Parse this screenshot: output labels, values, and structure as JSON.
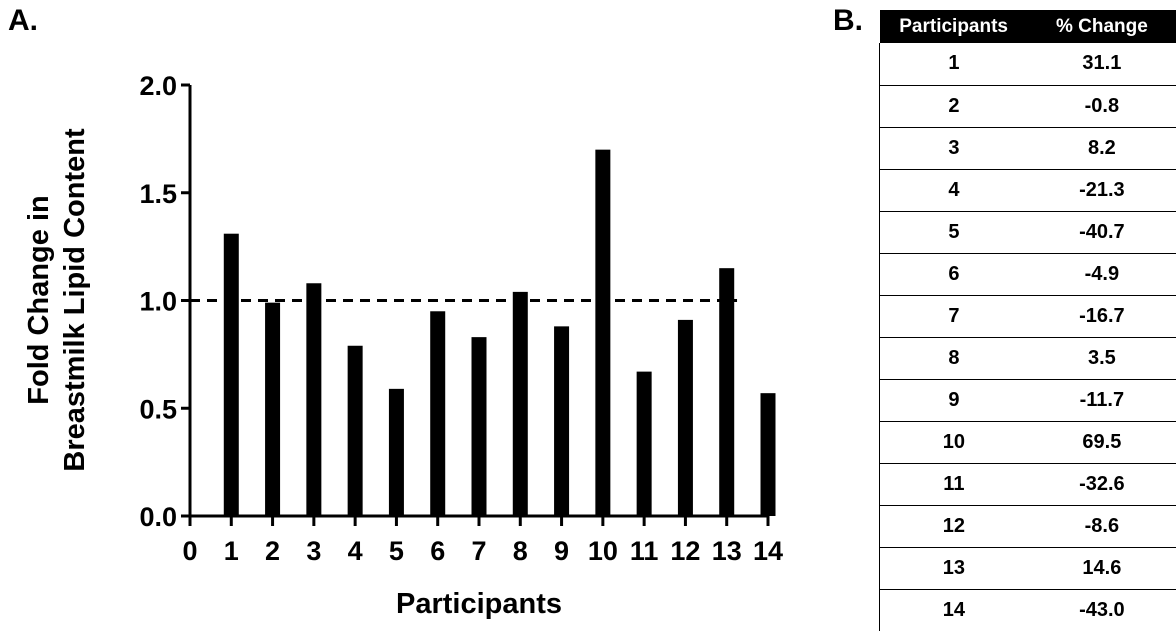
{
  "panel_a_label": "A.",
  "panel_b_label": "B.",
  "chart_data": {
    "type": "bar",
    "x": [
      1,
      2,
      3,
      4,
      5,
      6,
      7,
      8,
      9,
      10,
      11,
      12,
      13,
      14
    ],
    "values": [
      1.31,
      0.99,
      1.08,
      0.79,
      0.59,
      0.95,
      0.83,
      1.04,
      0.88,
      1.7,
      0.67,
      0.91,
      1.15,
      0.57
    ],
    "xlabel": "Participants",
    "ylabel_line1": "Fold Change in",
    "ylabel_line2": "Breastmilk Lipid Content",
    "xlim": [
      0,
      14
    ],
    "ylim": [
      0,
      2.0
    ],
    "x_ticks": [
      "0",
      "1",
      "2",
      "3",
      "4",
      "5",
      "6",
      "7",
      "8",
      "9",
      "10",
      "11",
      "12",
      "13",
      "14"
    ],
    "y_ticks": [
      "0.0",
      "0.5",
      "1.0",
      "1.5",
      "2.0"
    ],
    "reference_line": {
      "y": 1.0,
      "style": "dashed"
    },
    "bar_color": "#000000",
    "grid": false
  },
  "table": {
    "headers": [
      "Participants",
      "% Change"
    ],
    "rows": [
      [
        "1",
        "31.1"
      ],
      [
        "2",
        "-0.8"
      ],
      [
        "3",
        "8.2"
      ],
      [
        "4",
        "-21.3"
      ],
      [
        "5",
        "-40.7"
      ],
      [
        "6",
        "-4.9"
      ],
      [
        "7",
        "-16.7"
      ],
      [
        "8",
        "3.5"
      ],
      [
        "9",
        "-11.7"
      ],
      [
        "10",
        "69.5"
      ],
      [
        "11",
        "-32.6"
      ],
      [
        "12",
        "-8.6"
      ],
      [
        "13",
        "14.6"
      ],
      [
        "14",
        "-43.0"
      ]
    ]
  }
}
